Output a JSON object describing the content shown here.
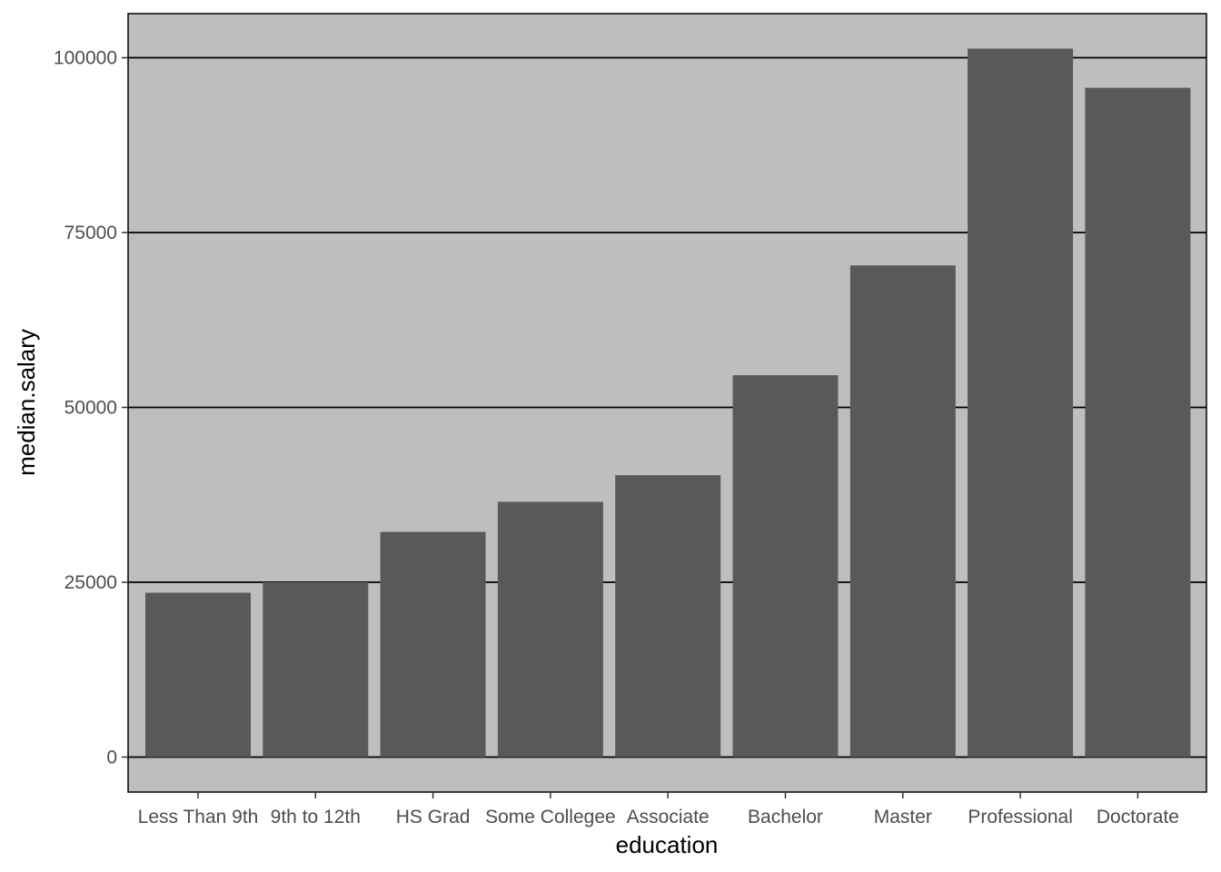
{
  "chart_data": {
    "type": "bar",
    "title": "",
    "xlabel": "education",
    "ylabel": "median.salary",
    "categories": [
      "Less Than 9th",
      "9th to 12th",
      "HS Grad",
      "Some Collegee",
      "Associate",
      "Bachelor",
      "Master",
      "Professional",
      "Doctorate"
    ],
    "values": [
      23500,
      25000,
      32200,
      36500,
      40300,
      54600,
      70300,
      101300,
      95700
    ],
    "ylim": [
      -5000,
      106300
    ],
    "yticks": [
      0,
      25000,
      50000,
      75000,
      100000
    ],
    "ytick_labels": [
      "0",
      "25000",
      "50000",
      "75000",
      "100000"
    ],
    "grid": true,
    "legend": "none",
    "colors": {
      "panel_background": "#bebebe",
      "bar_fill": "#595959",
      "gridline": "#000000",
      "panel_border": "#000000",
      "tick_label": "#4d4d4d",
      "axis_title": "#000000"
    }
  }
}
